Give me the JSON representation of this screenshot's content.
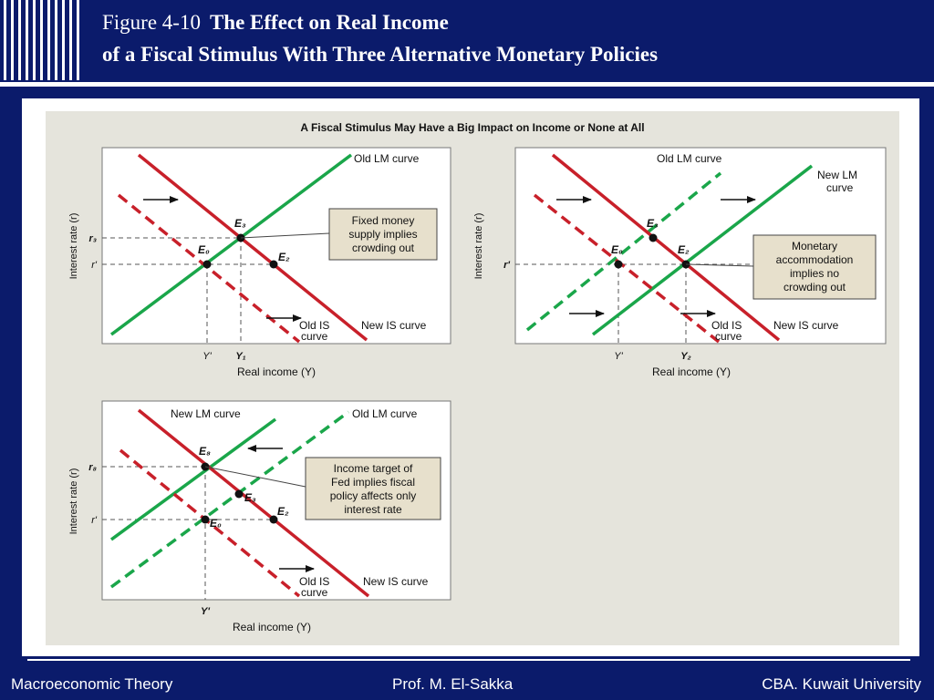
{
  "header": {
    "figure_number": "Figure 4-10",
    "title_line1": "The Effect on Real Income",
    "title_line2": "of a Fiscal Stimulus With Three Alternative Monetary Policies"
  },
  "figure": {
    "heading": "A Fiscal Stimulus May Have a Big Impact on Income or None at All",
    "panels": [
      {
        "xlabel": "Real income (Y)",
        "ylabel": "Interest rate (r)",
        "r_high": "r₃",
        "r_low": "r'",
        "y_left": "Y'",
        "y_right": "Y₁",
        "lm_old": "Old LM curve",
        "is_old_1": "Old IS",
        "is_old_2": "curve",
        "is_new": "New IS curve",
        "pt_e0": "E₀",
        "pt_e2": "E₂",
        "pt_e3": "E₃",
        "note_lines": [
          "Fixed money",
          "supply implies",
          "crowding out"
        ]
      },
      {
        "xlabel": "Real income (Y)",
        "ylabel": "Interest rate (r)",
        "r_low": "r'",
        "y_left": "Y'",
        "y_right": "Y₂",
        "lm_old": "Old LM curve",
        "lm_new_1": "New LM",
        "lm_new_2": "curve",
        "is_old_1": "Old IS",
        "is_old_2": "curve",
        "is_new": "New IS curve",
        "pt_e0": "E₀",
        "pt_e2": "E₂",
        "pt_e3": "E₃",
        "note_lines": [
          "Monetary",
          "accommodation",
          "implies no",
          "crowding out"
        ]
      },
      {
        "xlabel": "Real income (Y)",
        "ylabel": "Interest rate (r)",
        "r_high": "r₈",
        "r_low": "r'",
        "y_left": "Y'",
        "lm_old": "Old LM curve",
        "lm_new": "New LM curve",
        "is_old_1": "Old IS",
        "is_old_2": "curve",
        "is_new": "New IS curve",
        "pt_e0": "E₀",
        "pt_e2": "E₂",
        "pt_e3": "E₃",
        "pt_e8": "E₈",
        "note_lines": [
          "Income target of",
          "Fed implies fiscal",
          "policy affects only",
          "interest rate"
        ]
      }
    ]
  },
  "footer": {
    "left": "Macroeconomic Theory",
    "center": "Prof. M. El-Sakka",
    "right": "CBA. Kuwait University"
  },
  "colors": {
    "background": "#0b1b6b",
    "lm": "#1aa64a",
    "is": "#c8202a",
    "panel": "#e5e4dc",
    "note_box": "#e7e0cc"
  }
}
